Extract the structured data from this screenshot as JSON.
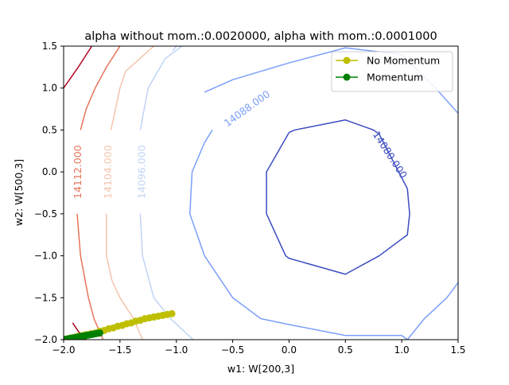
{
  "chart_data": {
    "type": "line",
    "title": "alpha without mom.:0.0020000, alpha with mom.:0.0001000",
    "xlabel": "w1: W[200,3]",
    "ylabel": "w2: W[500,3]",
    "xlim": [
      -2.0,
      1.5
    ],
    "ylim": [
      -2.0,
      1.5
    ],
    "xticks": [
      -2.0,
      -1.5,
      -1.0,
      -0.5,
      0.0,
      0.5,
      1.0,
      1.5
    ],
    "xtick_labels": [
      "−2.0",
      "−1.5",
      "−1.0",
      "−0.5",
      "0.0",
      "0.5",
      "1.0",
      "1.5"
    ],
    "yticks": [
      -2.0,
      -1.5,
      -1.0,
      -0.5,
      0.0,
      0.5,
      1.0,
      1.5
    ],
    "ytick_labels": [
      "−2.0",
      "−1.5",
      "−1.0",
      "−0.5",
      "0.0",
      "0.5",
      "1.0",
      "1.5"
    ],
    "grid": false,
    "legend_position": "top-right",
    "legend": [
      {
        "label": "No Momentum",
        "color": "#bfbf00"
      },
      {
        "label": "Momentum",
        "color": "#008000"
      }
    ],
    "contours": [
      {
        "level_label": "14080.000",
        "color": "#3b4cc0",
        "closed": true,
        "points": [
          [
            0.0,
            0.47
          ],
          [
            0.05,
            0.5
          ],
          [
            0.5,
            0.62
          ],
          [
            0.75,
            0.5
          ],
          [
            0.8,
            0.45
          ],
          [
            1.05,
            -0.2
          ],
          [
            1.07,
            -0.5
          ],
          [
            1.05,
            -0.75
          ],
          [
            0.8,
            -1.0
          ],
          [
            0.5,
            -1.22
          ],
          [
            0.0,
            -1.03
          ],
          [
            -0.03,
            -1.0
          ],
          [
            -0.2,
            -0.5
          ],
          [
            -0.2,
            0.0
          ],
          [
            0.0,
            0.47
          ]
        ],
        "label_at": [
          0.89,
          0.2
        ],
        "label_rotation": 57
      },
      {
        "level_label": "14088.000",
        "color": "#7b9ff9",
        "closed": false,
        "points": [
          [
            1.5,
            0.7
          ],
          [
            1.3,
            1.0
          ],
          [
            1.0,
            1.4
          ],
          [
            0.5,
            1.48
          ],
          [
            0.0,
            1.3
          ],
          [
            -0.5,
            1.1
          ],
          [
            -0.75,
            0.95
          ]
        ],
        "label_at": [
          -0.37,
          0.75
        ],
        "label_rotation": -36
      },
      {
        "level_label": "",
        "color": "#7b9ff9",
        "closed": false,
        "points": [
          [
            -0.68,
            0.5
          ],
          [
            -0.75,
            0.35
          ],
          [
            -0.86,
            0.0
          ],
          [
            -0.88,
            -0.5
          ],
          [
            -0.75,
            -1.0
          ],
          [
            -0.5,
            -1.5
          ],
          [
            -0.25,
            -1.75
          ],
          [
            0.0,
            -1.82
          ],
          [
            0.5,
            -1.95
          ],
          [
            1.0,
            -1.95
          ],
          [
            1.05,
            -2.0
          ]
        ]
      },
      {
        "level_label": "",
        "color": "#7b9ff9",
        "closed": false,
        "points": [
          [
            1.5,
            -1.32
          ],
          [
            1.4,
            -1.5
          ],
          [
            1.2,
            -1.75
          ],
          [
            1.05,
            -2.0
          ]
        ]
      },
      {
        "level_label": "14096.000",
        "color": "#c0d4f5",
        "closed": false,
        "points": [
          [
            -1.0,
            1.5
          ],
          [
            -1.0,
            1.5
          ],
          [
            -1.03,
            1.45
          ],
          [
            -1.0,
            1.5
          ],
          [
            -0.95,
            1.5
          ]
        ]
      },
      {
        "level_label": "",
        "color": "#c0d4f5",
        "closed": false,
        "points": [
          [
            -0.95,
            1.5
          ],
          [
            -1.1,
            1.35
          ],
          [
            -1.25,
            1.0
          ],
          [
            -1.32,
            0.5
          ]
        ],
        "label_at": [
          -1.3,
          0.0
        ],
        "label_rotation": -90
      },
      {
        "level_label": "",
        "color": "#c0d4f5",
        "closed": false,
        "points": [
          [
            -1.32,
            -0.5
          ],
          [
            -1.3,
            -1.0
          ],
          [
            -1.2,
            -1.5
          ],
          [
            -1.05,
            -1.75
          ],
          [
            -0.85,
            -2.0
          ]
        ]
      },
      {
        "level_label": "14104.000",
        "color": "#f5c4ac",
        "closed": false,
        "points": [
          [
            -1.2,
            1.5
          ],
          [
            -1.45,
            1.2
          ],
          [
            -1.5,
            1.0
          ],
          [
            -1.58,
            0.5
          ]
        ],
        "label_at": [
          -1.6,
          0.0
        ],
        "label_rotation": -90
      },
      {
        "level_label": "",
        "color": "#f5c4ac",
        "closed": false,
        "points": [
          [
            -1.62,
            -0.5
          ],
          [
            -1.62,
            -1.0
          ],
          [
            -1.57,
            -1.3
          ],
          [
            -1.5,
            -1.5
          ],
          [
            -1.38,
            -1.75
          ],
          [
            -1.3,
            -2.0
          ]
        ]
      },
      {
        "level_label": "14112.000",
        "color": "#e7745b",
        "closed": false,
        "points": [
          [
            -1.5,
            1.5
          ],
          [
            -1.62,
            1.25
          ],
          [
            -1.72,
            1.0
          ],
          [
            -1.8,
            0.75
          ],
          [
            -1.85,
            0.5
          ]
        ],
        "label_at": [
          -1.87,
          0.0
        ],
        "label_rotation": -90
      },
      {
        "level_label": "",
        "color": "#e7745b",
        "closed": false,
        "points": [
          [
            -1.88,
            -0.5
          ],
          [
            -1.85,
            -1.0
          ],
          [
            -1.78,
            -1.5
          ],
          [
            -1.73,
            -1.75
          ],
          [
            -1.65,
            -2.0
          ]
        ]
      },
      {
        "level_label": "",
        "color": "#b40426",
        "closed": false,
        "points": [
          [
            -2.0,
            1.0
          ],
          [
            -1.87,
            1.25
          ],
          [
            -1.75,
            1.5
          ]
        ]
      },
      {
        "level_label": "",
        "color": "#b40426",
        "closed": false,
        "points": [
          [
            -1.92,
            -1.8
          ],
          [
            -1.87,
            -1.9
          ],
          [
            -1.8,
            -2.0
          ]
        ]
      }
    ],
    "series": [
      {
        "name": "No Momentum",
        "color": "#bfbf00",
        "marker": "circle",
        "x": [
          -2.0,
          -1.97,
          -1.94,
          -1.9,
          -1.87,
          -1.83,
          -1.8,
          -1.76,
          -1.72,
          -1.68,
          -1.64,
          -1.6,
          -1.56,
          -1.52,
          -1.48,
          -1.44,
          -1.4,
          -1.36,
          -1.32,
          -1.28,
          -1.24,
          -1.2,
          -1.16,
          -1.12,
          -1.08,
          -1.04
        ],
        "y": [
          -2.0,
          -1.99,
          -1.98,
          -1.97,
          -1.96,
          -1.95,
          -1.94,
          -1.93,
          -1.92,
          -1.9,
          -1.89,
          -1.87,
          -1.86,
          -1.84,
          -1.83,
          -1.81,
          -1.8,
          -1.78,
          -1.77,
          -1.75,
          -1.74,
          -1.73,
          -1.72,
          -1.71,
          -1.7,
          -1.69
        ]
      },
      {
        "name": "Momentum",
        "color": "#008000",
        "marker": "circle",
        "x": [
          -2.0,
          -1.98,
          -1.96,
          -1.94,
          -1.92,
          -1.9,
          -1.88,
          -1.86,
          -1.84,
          -1.82,
          -1.8,
          -1.78,
          -1.76,
          -1.74,
          -1.72,
          -1.7,
          -1.68
        ],
        "y": [
          -2.0,
          -1.995,
          -1.99,
          -1.985,
          -1.98,
          -1.975,
          -1.97,
          -1.965,
          -1.96,
          -1.955,
          -1.95,
          -1.945,
          -1.94,
          -1.935,
          -1.93,
          -1.925,
          -1.92
        ]
      }
    ]
  }
}
